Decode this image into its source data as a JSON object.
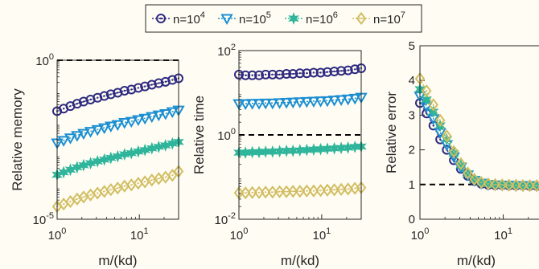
{
  "legend": {
    "entries": [
      {
        "prefix": "n=10",
        "exp": "4",
        "color": "#2e2a80",
        "marker": "circle-dot"
      },
      {
        "prefix": "n=10",
        "exp": "5",
        "color": "#1b8fd2",
        "marker": "triangle-down"
      },
      {
        "prefix": "n=10",
        "exp": "6",
        "color": "#2fb59b",
        "marker": "hexagram"
      },
      {
        "prefix": "n=10",
        "exp": "7",
        "color": "#d2bd63",
        "marker": "diamond-dot"
      }
    ]
  },
  "chart_data": [
    {
      "type": "line",
      "xlabel": "m/(kd)",
      "ylabel": "Relative memory",
      "xscale": "log",
      "yscale": "log",
      "xlim": [
        1,
        30
      ],
      "ylim": [
        1e-05,
        1
      ],
      "xticks": [
        {
          "v": 1,
          "b": "10",
          "e": "0"
        },
        {
          "v": 10,
          "b": "10",
          "e": "1"
        }
      ],
      "yticks": [
        {
          "v": 1e-05,
          "b": "10",
          "e": "-5"
        },
        {
          "v": 1,
          "b": "10",
          "e": "0"
        }
      ],
      "reference_line": 1,
      "x": [
        1,
        1.2,
        1.45,
        1.75,
        2.1,
        2.55,
        3.1,
        3.75,
        4.5,
        5.45,
        6.6,
        8,
        9.7,
        11.7,
        14.2,
        17.2,
        20.8,
        25.2,
        30
      ],
      "series": [
        {
          "name": "n=10^4",
          "values": [
            0.025,
            0.03,
            0.036,
            0.043,
            0.05,
            0.058,
            0.066,
            0.075,
            0.085,
            0.095,
            0.11,
            0.12,
            0.135,
            0.15,
            0.17,
            0.19,
            0.21,
            0.24,
            0.27
          ]
        },
        {
          "name": "n=10^5",
          "values": [
            0.0025,
            0.003,
            0.0036,
            0.0043,
            0.005,
            0.0058,
            0.0066,
            0.0075,
            0.0085,
            0.0095,
            0.011,
            0.012,
            0.0135,
            0.015,
            0.017,
            0.019,
            0.021,
            0.024,
            0.027
          ]
        },
        {
          "name": "n=10^6",
          "values": [
            0.00025,
            0.0003,
            0.00036,
            0.00043,
            0.0005,
            0.00058,
            0.00066,
            0.00075,
            0.00085,
            0.00095,
            0.0011,
            0.0012,
            0.00135,
            0.0015,
            0.0017,
            0.0019,
            0.0021,
            0.0024,
            0.0027
          ]
        },
        {
          "name": "n=10^7",
          "values": [
            2.5e-05,
            3e-05,
            3.6e-05,
            4.3e-05,
            5e-05,
            5.8e-05,
            6.6e-05,
            7.5e-05,
            8.5e-05,
            9.5e-05,
            0.00011,
            0.00012,
            0.000135,
            0.00015,
            0.00017,
            0.00019,
            0.00021,
            0.00024,
            0.00032
          ]
        }
      ]
    },
    {
      "type": "line",
      "xlabel": "m/(kd)",
      "ylabel": "Relative time",
      "xscale": "log",
      "yscale": "log",
      "xlim": [
        1,
        30
      ],
      "ylim": [
        0.01,
        100
      ],
      "xticks": [
        {
          "v": 1,
          "b": "10",
          "e": "0"
        },
        {
          "v": 10,
          "b": "10",
          "e": "1"
        }
      ],
      "yticks": [
        {
          "v": 0.01,
          "b": "10",
          "e": "-2"
        },
        {
          "v": 1,
          "b": "10",
          "e": "0"
        },
        {
          "v": 100,
          "b": "10",
          "e": "2"
        }
      ],
      "reference_line": 1,
      "x": [
        1,
        1.2,
        1.45,
        1.75,
        2.1,
        2.55,
        3.1,
        3.75,
        4.5,
        5.45,
        6.6,
        8,
        9.7,
        11.7,
        14.2,
        17.2,
        20.8,
        25.2,
        30
      ],
      "series": [
        {
          "name": "n=10^4",
          "values": [
            27,
            26,
            26,
            26,
            27,
            27,
            27,
            28,
            28,
            29,
            29,
            30,
            30,
            31,
            32,
            33,
            34,
            36,
            38
          ]
        },
        {
          "name": "n=10^5",
          "values": [
            5.5,
            5.5,
            5.6,
            5.6,
            5.7,
            5.7,
            5.8,
            5.9,
            6,
            6.1,
            6.2,
            6.3,
            6.4,
            6.5,
            6.7,
            6.9,
            7.1,
            7.4,
            7.8
          ]
        },
        {
          "name": "n=10^6",
          "values": [
            0.38,
            0.38,
            0.39,
            0.39,
            0.4,
            0.4,
            0.41,
            0.42,
            0.42,
            0.43,
            0.44,
            0.45,
            0.46,
            0.47,
            0.48,
            0.49,
            0.5,
            0.52,
            0.53
          ]
        },
        {
          "name": "n=10^7",
          "values": [
            0.042,
            0.042,
            0.043,
            0.043,
            0.044,
            0.044,
            0.045,
            0.045,
            0.046,
            0.046,
            0.047,
            0.047,
            0.048,
            0.049,
            0.05,
            0.051,
            0.052,
            0.054,
            0.056
          ]
        }
      ]
    },
    {
      "type": "line",
      "xlabel": "m/(kd)",
      "ylabel": "Relative error",
      "xscale": "log",
      "yscale": "linear",
      "xlim": [
        1,
        30
      ],
      "ylim": [
        0,
        5
      ],
      "xticks": [
        {
          "v": 1,
          "b": "10",
          "e": "0"
        },
        {
          "v": 10,
          "b": "10",
          "e": "1"
        }
      ],
      "yticks": [
        {
          "v": 0,
          "t": "0"
        },
        {
          "v": 1,
          "t": "1"
        },
        {
          "v": 2,
          "t": "2"
        },
        {
          "v": 3,
          "t": "3"
        },
        {
          "v": 4,
          "t": "4"
        },
        {
          "v": 5,
          "t": "5"
        }
      ],
      "reference_line": 1,
      "x": [
        1,
        1.2,
        1.45,
        1.75,
        2.1,
        2.55,
        3.1,
        3.75,
        4.5,
        5.45,
        6.6,
        8,
        9.7,
        11.7,
        14.2,
        17.2,
        20.8,
        25.2,
        30
      ],
      "series": [
        {
          "name": "n=10^4",
          "values": [
            3.35,
            3.05,
            2.7,
            2.3,
            2.0,
            1.7,
            1.45,
            1.25,
            1.1,
            1.02,
            0.99,
            0.98,
            0.98,
            0.97,
            0.97,
            0.97,
            0.96,
            0.96,
            0.96
          ]
        },
        {
          "name": "n=10^5",
          "values": [
            3.55,
            3.25,
            2.9,
            2.5,
            2.15,
            1.8,
            1.5,
            1.28,
            1.12,
            1.04,
            1.0,
            0.99,
            0.98,
            0.98,
            0.97,
            0.97,
            0.97,
            0.96,
            0.96
          ]
        },
        {
          "name": "n=10^6",
          "values": [
            3.75,
            3.45,
            3.1,
            2.7,
            2.3,
            1.9,
            1.55,
            1.3,
            1.13,
            1.05,
            1.01,
            0.99,
            0.98,
            0.98,
            0.97,
            0.97,
            0.97,
            0.96,
            0.96
          ]
        },
        {
          "name": "n=10^7",
          "values": [
            4.05,
            3.7,
            3.3,
            2.85,
            2.4,
            1.95,
            1.6,
            1.33,
            1.15,
            1.06,
            1.02,
            1.0,
            0.99,
            0.98,
            0.98,
            0.97,
            0.97,
            0.97,
            0.96
          ]
        }
      ]
    }
  ]
}
